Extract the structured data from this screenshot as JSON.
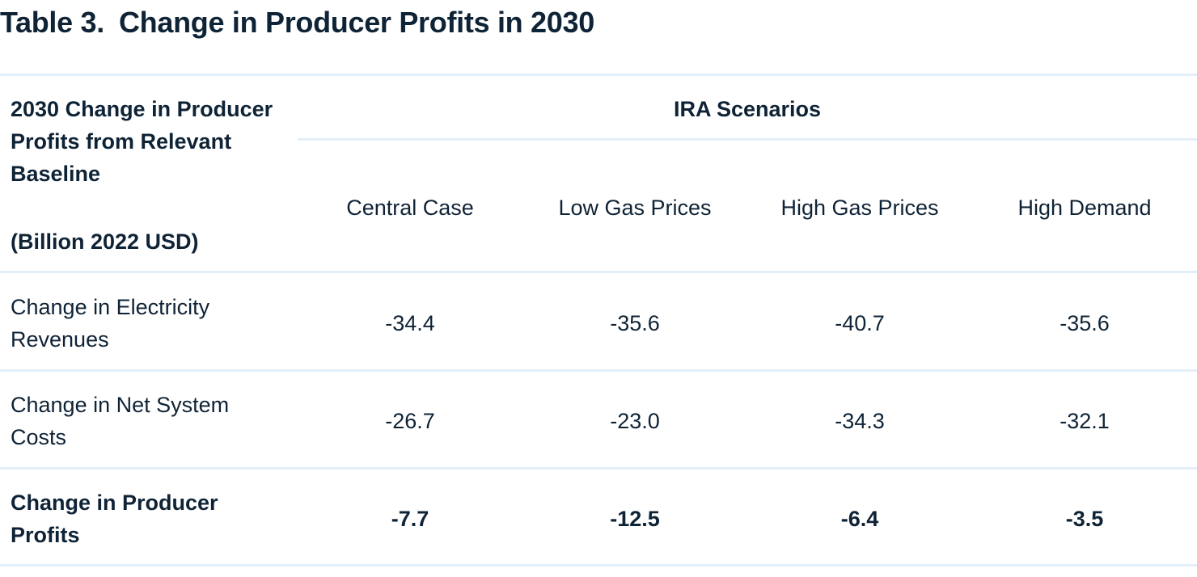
{
  "table": {
    "title_number": "Table 3.",
    "title_text": "Change in Producer Profits in 2030",
    "header": {
      "row_label_lines": [
        "2030 Change in Producer",
        "Profits from Relevant",
        "Baseline"
      ],
      "row_label_unit": "(Billion 2022 USD)",
      "group_label": "IRA Scenarios",
      "columns": [
        "Central Case",
        "Low Gas Prices",
        "High Gas Prices",
        "High Demand"
      ]
    },
    "rows": [
      {
        "label_lines": [
          "Change in Electricity",
          "Revenues"
        ],
        "values": [
          "-34.4",
          "-35.6",
          "-40.7",
          "-35.6"
        ]
      },
      {
        "label_lines": [
          "Change in Net System",
          "Costs"
        ],
        "values": [
          "-26.7",
          "-23.0",
          "-34.3",
          "-32.1"
        ]
      },
      {
        "label_lines": [
          "Change in Producer",
          "Profits"
        ],
        "values": [
          "-7.7",
          "-12.5",
          "-6.4",
          "-3.5"
        ]
      }
    ]
  }
}
